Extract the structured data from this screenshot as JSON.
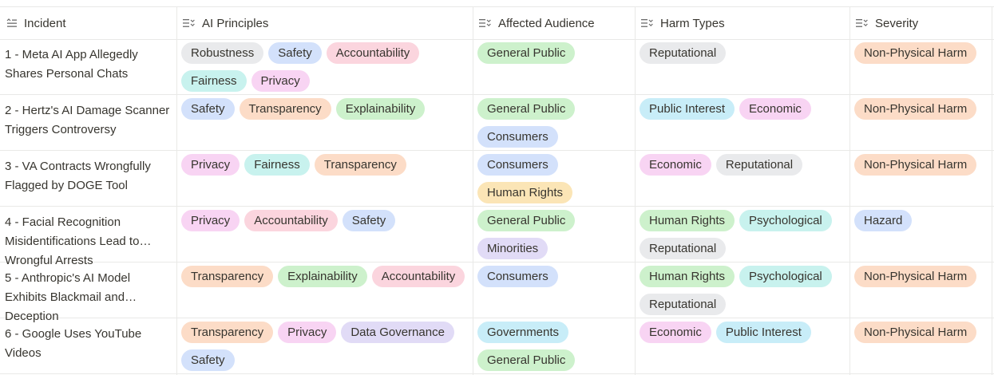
{
  "colors": {
    "Robustness": "#e9eaec",
    "Safety": "#d3e1fb",
    "Accountability": "#fbd5de",
    "Fairness": "#c8f2ee",
    "Privacy": "#f8d4f3",
    "Transparency": "#fcdcc7",
    "Explainability": "#cdf1cc",
    "Data Governance": "#e1dbf6",
    "General Public": "#cdf1cc",
    "Consumers": "#d3e1fb",
    "Human Rights": "#fbe5b6",
    "Minorities": "#e1dbf6",
    "Governments": "#c8edf8",
    "Reputational": "#e9eaec",
    "Public Interest": "#c8edf8",
    "Economic": "#f8d4f3",
    "Psychological": "#c8f2ee",
    "Non-Physical Harm": "#fcdcc7",
    "Hazard": "#d3e1fb",
    "Human Rights (harm)": "#cdf1cc"
  },
  "columns": [
    {
      "key": "incident",
      "label": "Incident",
      "icon": "text-property-icon"
    },
    {
      "key": "principles",
      "label": "AI Principles",
      "icon": "multi-select-icon"
    },
    {
      "key": "audience",
      "label": "Affected Audience",
      "icon": "multi-select-icon"
    },
    {
      "key": "harms",
      "label": "Harm Types",
      "icon": "multi-select-icon"
    },
    {
      "key": "severity",
      "label": "Severity",
      "icon": "multi-select-icon"
    }
  ],
  "rows": [
    {
      "incident": "1 - Meta AI App Allegedly Shares Personal Chats",
      "principles": [
        "Robustness",
        "Safety",
        "Accountability",
        "Fairness",
        "Privacy"
      ],
      "audience": [
        "General Public"
      ],
      "harms": [
        "Reputational"
      ],
      "severity": [
        "Non-Physical Harm"
      ]
    },
    {
      "incident": "2 - Hertz's AI Damage Scanner Triggers Controversy",
      "principles": [
        "Safety",
        "Transparency",
        "Explainability"
      ],
      "audience": [
        "General Public",
        "Consumers"
      ],
      "harms": [
        "Public Interest",
        "Economic"
      ],
      "severity": [
        "Non-Physical Harm"
      ]
    },
    {
      "incident": "3 - VA Contracts Wrongfully Flagged by DOGE Tool",
      "principles": [
        "Privacy",
        "Fairness",
        "Transparency"
      ],
      "audience": [
        "Consumers",
        "Human Rights"
      ],
      "harms": [
        "Economic",
        "Reputational"
      ],
      "severity": [
        "Non-Physical Harm"
      ]
    },
    {
      "incident": "4 - Facial Recognition Misidentifications Lead to Wrongful Arrests",
      "principles": [
        "Privacy",
        "Accountability",
        "Safety"
      ],
      "audience": [
        "General Public",
        "Minorities"
      ],
      "harms": [
        "Human Rights",
        "Psychological",
        "Reputational"
      ],
      "severity": [
        "Hazard"
      ]
    },
    {
      "incident": "5 - Anthropic's AI Model Exhibits Blackmail and Deception",
      "principles": [
        "Transparency",
        "Explainability",
        "Accountability"
      ],
      "audience": [
        "Consumers"
      ],
      "harms": [
        "Human Rights",
        "Psychological",
        "Reputational"
      ],
      "severity": [
        "Non-Physical Harm"
      ]
    },
    {
      "incident": "6 - Google Uses YouTube Videos",
      "principles": [
        "Transparency",
        "Privacy",
        "Data Governance",
        "Safety"
      ],
      "audience": [
        "Governments",
        "General Public"
      ],
      "harms": [
        "Economic",
        "Public Interest"
      ],
      "severity": [
        "Non-Physical Harm"
      ]
    }
  ]
}
